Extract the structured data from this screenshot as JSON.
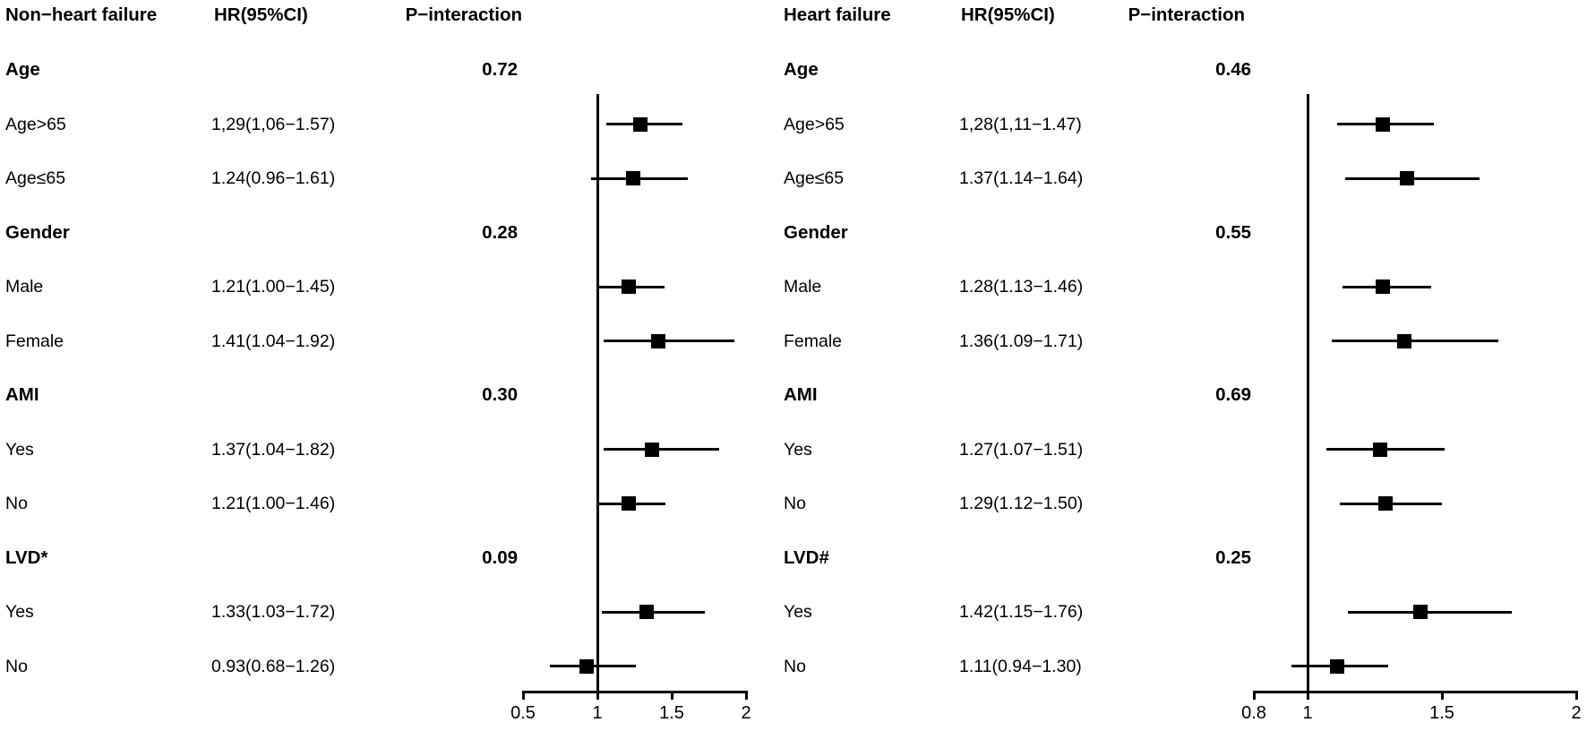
{
  "figure": {
    "background": "#ffffff",
    "ink_color": "#000000"
  },
  "chart_data": {
    "type": "forest",
    "legend_position": "none",
    "grid": false,
    "panels": [
      {
        "title": "Non−heart failure",
        "hr_header": "HR(95%CI)",
        "p_header": "P−interaction",
        "axis": {
          "min": 0.5,
          "max": 2,
          "ref": 1,
          "ticks": [
            0.5,
            1,
            1.5,
            2
          ],
          "tick_labels": [
            "0.5",
            "1",
            "1.5",
            "2"
          ]
        },
        "rows": [
          {
            "type": "section",
            "label": "Age",
            "p": "0.72"
          },
          {
            "type": "item",
            "label": "Age>65",
            "hr_text": "1,29(1,06−1.57)",
            "hr": 1.29,
            "lo": 1.06,
            "hi": 1.57
          },
          {
            "type": "item",
            "label": "Age≤65",
            "hr_text": "1.24(0.96−1.61)",
            "hr": 1.24,
            "lo": 0.96,
            "hi": 1.61
          },
          {
            "type": "section",
            "label": "Gender",
            "p": "0.28"
          },
          {
            "type": "item",
            "label": "Male",
            "hr_text": "1.21(1.00−1.45)",
            "hr": 1.21,
            "lo": 1.0,
            "hi": 1.45
          },
          {
            "type": "item",
            "label": "Female",
            "hr_text": "1.41(1.04−1.92)",
            "hr": 1.41,
            "lo": 1.04,
            "hi": 1.92
          },
          {
            "type": "section",
            "label": "AMI",
            "p": "0.30"
          },
          {
            "type": "item",
            "label": "Yes",
            "hr_text": "1.37(1.04−1.82)",
            "hr": 1.37,
            "lo": 1.04,
            "hi": 1.82
          },
          {
            "type": "item",
            "label": "No",
            "hr_text": "1.21(1.00−1.46)",
            "hr": 1.21,
            "lo": 1.0,
            "hi": 1.46
          },
          {
            "type": "section",
            "label": "LVD*",
            "p": "0.09"
          },
          {
            "type": "item",
            "label": "Yes",
            "hr_text": "1.33(1.03−1.72)",
            "hr": 1.33,
            "lo": 1.03,
            "hi": 1.72
          },
          {
            "type": "item",
            "label": "No",
            "hr_text": "0.93(0.68−1.26)",
            "hr": 0.93,
            "lo": 0.68,
            "hi": 1.26
          }
        ]
      },
      {
        "title": "Heart failure",
        "hr_header": "HR(95%CI)",
        "p_header": "P−interaction",
        "axis": {
          "min": 0.8,
          "max": 2,
          "ref": 1,
          "ticks": [
            0.8,
            1,
            1.5,
            2
          ],
          "tick_labels": [
            "0.8",
            "1",
            "1.5",
            "2"
          ]
        },
        "rows": [
          {
            "type": "section",
            "label": "Age",
            "p": "0.46"
          },
          {
            "type": "item",
            "label": "Age>65",
            "hr_text": "1,28(1,11−1.47)",
            "hr": 1.28,
            "lo": 1.11,
            "hi": 1.47
          },
          {
            "type": "item",
            "label": "Age≤65",
            "hr_text": "1.37(1.14−1.64)",
            "hr": 1.37,
            "lo": 1.14,
            "hi": 1.64
          },
          {
            "type": "section",
            "label": "Gender",
            "p": "0.55"
          },
          {
            "type": "item",
            "label": "Male",
            "hr_text": "1.28(1.13−1.46)",
            "hr": 1.28,
            "lo": 1.13,
            "hi": 1.46
          },
          {
            "type": "item",
            "label": "Female",
            "hr_text": "1.36(1.09−1.71)",
            "hr": 1.36,
            "lo": 1.09,
            "hi": 1.71
          },
          {
            "type": "section",
            "label": "AMI",
            "p": "0.69"
          },
          {
            "type": "item",
            "label": "Yes",
            "hr_text": "1.27(1.07−1.51)",
            "hr": 1.27,
            "lo": 1.07,
            "hi": 1.51
          },
          {
            "type": "item",
            "label": "No",
            "hr_text": "1.29(1.12−1.50)",
            "hr": 1.29,
            "lo": 1.12,
            "hi": 1.5
          },
          {
            "type": "section",
            "label": "LVD#",
            "p": "0.25"
          },
          {
            "type": "item",
            "label": "Yes",
            "hr_text": "1.42(1.15−1.76)",
            "hr": 1.42,
            "lo": 1.15,
            "hi": 1.76
          },
          {
            "type": "item",
            "label": "No",
            "hr_text": "1.11(0.94−1.30)",
            "hr": 1.11,
            "lo": 0.94,
            "hi": 1.3
          }
        ]
      }
    ]
  }
}
